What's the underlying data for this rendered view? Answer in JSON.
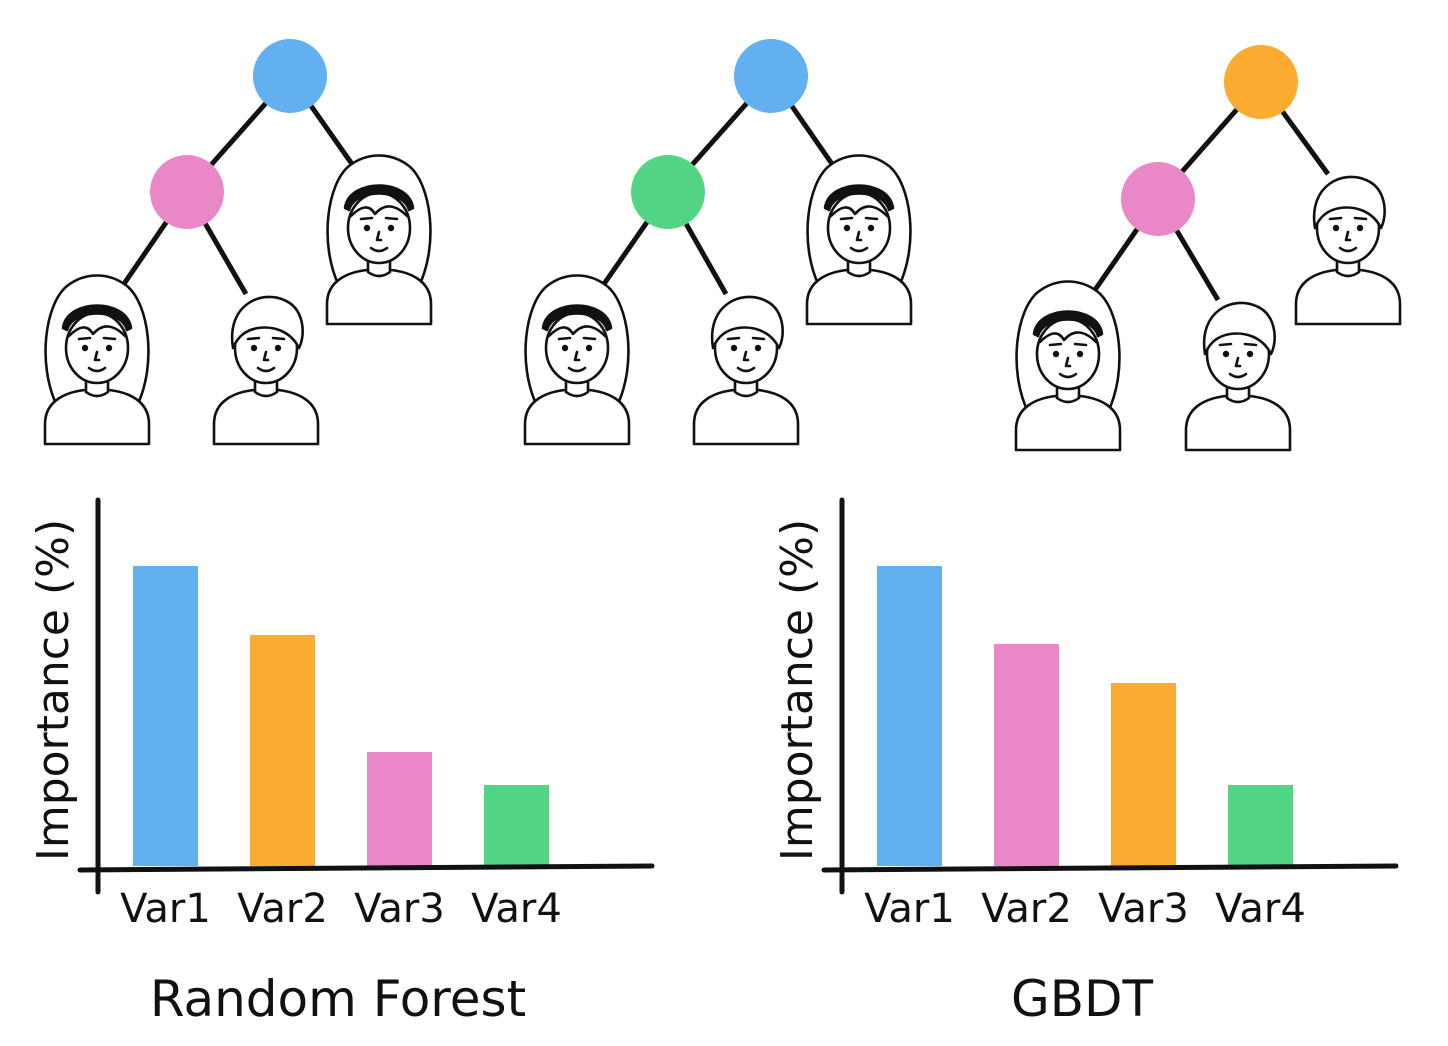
{
  "colors": {
    "blue": "#63b0f0",
    "orange": "#fbab2f",
    "pink": "#ea87c6",
    "green": "#52d585",
    "ink": "#111111"
  },
  "trees": [
    {
      "root_color": "blue",
      "inner_color": "pink",
      "leaves": [
        {
          "icon": "person-long-hair-icon"
        },
        {
          "icon": "person-short-hair-icon"
        },
        {
          "icon": "person-long-hair-icon"
        }
      ]
    },
    {
      "root_color": "blue",
      "inner_color": "green",
      "leaves": [
        {
          "icon": "person-long-hair-icon"
        },
        {
          "icon": "person-short-hair-icon"
        },
        {
          "icon": "person-long-hair-icon"
        }
      ]
    },
    {
      "root_color": "orange",
      "inner_color": "pink",
      "leaves": [
        {
          "icon": "person-long-hair-icon"
        },
        {
          "icon": "person-short-hair-icon"
        },
        {
          "icon": "person-short-hair-icon"
        }
      ]
    }
  ],
  "chart_data": [
    {
      "type": "bar",
      "title": "Random Forest",
      "ylabel": "Importance (%)",
      "xlabel": "",
      "categories": [
        "Var1",
        "Var2",
        "Var3",
        "Var4"
      ],
      "values": [
        100,
        77,
        38,
        27
      ],
      "bar_colors": [
        "blue",
        "orange",
        "pink",
        "green"
      ],
      "ylim": [
        0,
        110
      ],
      "grid": false
    },
    {
      "type": "bar",
      "title": "GBDT",
      "ylabel": "Importance (%)",
      "xlabel": "",
      "categories": [
        "Var1",
        "Var2",
        "Var3",
        "Var4"
      ],
      "values": [
        100,
        74,
        61,
        27
      ],
      "bar_colors": [
        "blue",
        "pink",
        "orange",
        "green"
      ],
      "ylim": [
        0,
        110
      ],
      "grid": false
    }
  ]
}
